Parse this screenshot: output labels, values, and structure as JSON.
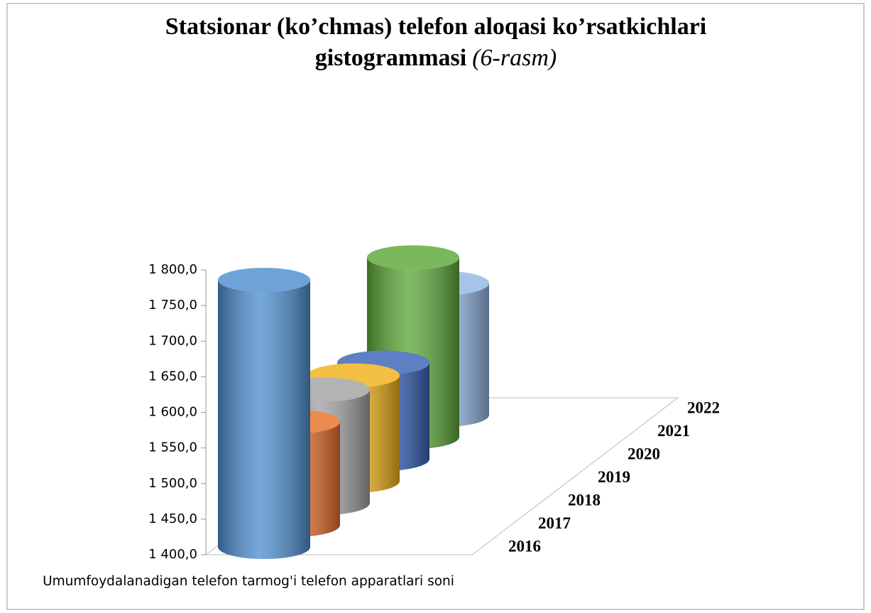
{
  "chart_data": {
    "type": "bar3d",
    "title": [
      "Statsionar (ko’chmas) telefon aloqasi ko’rsatkichlari",
      "gistogrammasi"
    ],
    "subtitle": "(6-rasm)",
    "categories": [
      "Umumfoydalanadigan telefon tarmog'i telefon apparatlari soni"
    ],
    "series": [
      {
        "name": "2016",
        "color": "#4f8fd0",
        "values": [
          1775
        ]
      },
      {
        "name": "2017",
        "color": "#e8712b",
        "values": [
          1545
        ]
      },
      {
        "name": "2018",
        "color": "#a3a3a3",
        "values": [
          1559
        ]
      },
      {
        "name": "2019",
        "color": "#f2b31a",
        "values": [
          1548
        ]
      },
      {
        "name": "2020",
        "color": "#3a64b8",
        "values": [
          1535
        ]
      },
      {
        "name": "2021",
        "color": "#5ea83a",
        "values": [
          1652
        ]
      },
      {
        "name": "2022",
        "color": "#93b7e4",
        "values": [
          1585
        ]
      }
    ],
    "ylim": [
      1400,
      1800
    ],
    "yticks": [
      {
        "value": 1400,
        "label": "1 400,0"
      },
      {
        "value": 1450,
        "label": "1 450,0"
      },
      {
        "value": 1500,
        "label": "1 500,0"
      },
      {
        "value": 1550,
        "label": "1 550,0"
      },
      {
        "value": 1600,
        "label": "1 600,0"
      },
      {
        "value": 1650,
        "label": "1 650,0"
      },
      {
        "value": 1700,
        "label": "1 700,0"
      },
      {
        "value": 1750,
        "label": "1 750,0"
      },
      {
        "value": 1800,
        "label": "1 800,0"
      }
    ]
  }
}
